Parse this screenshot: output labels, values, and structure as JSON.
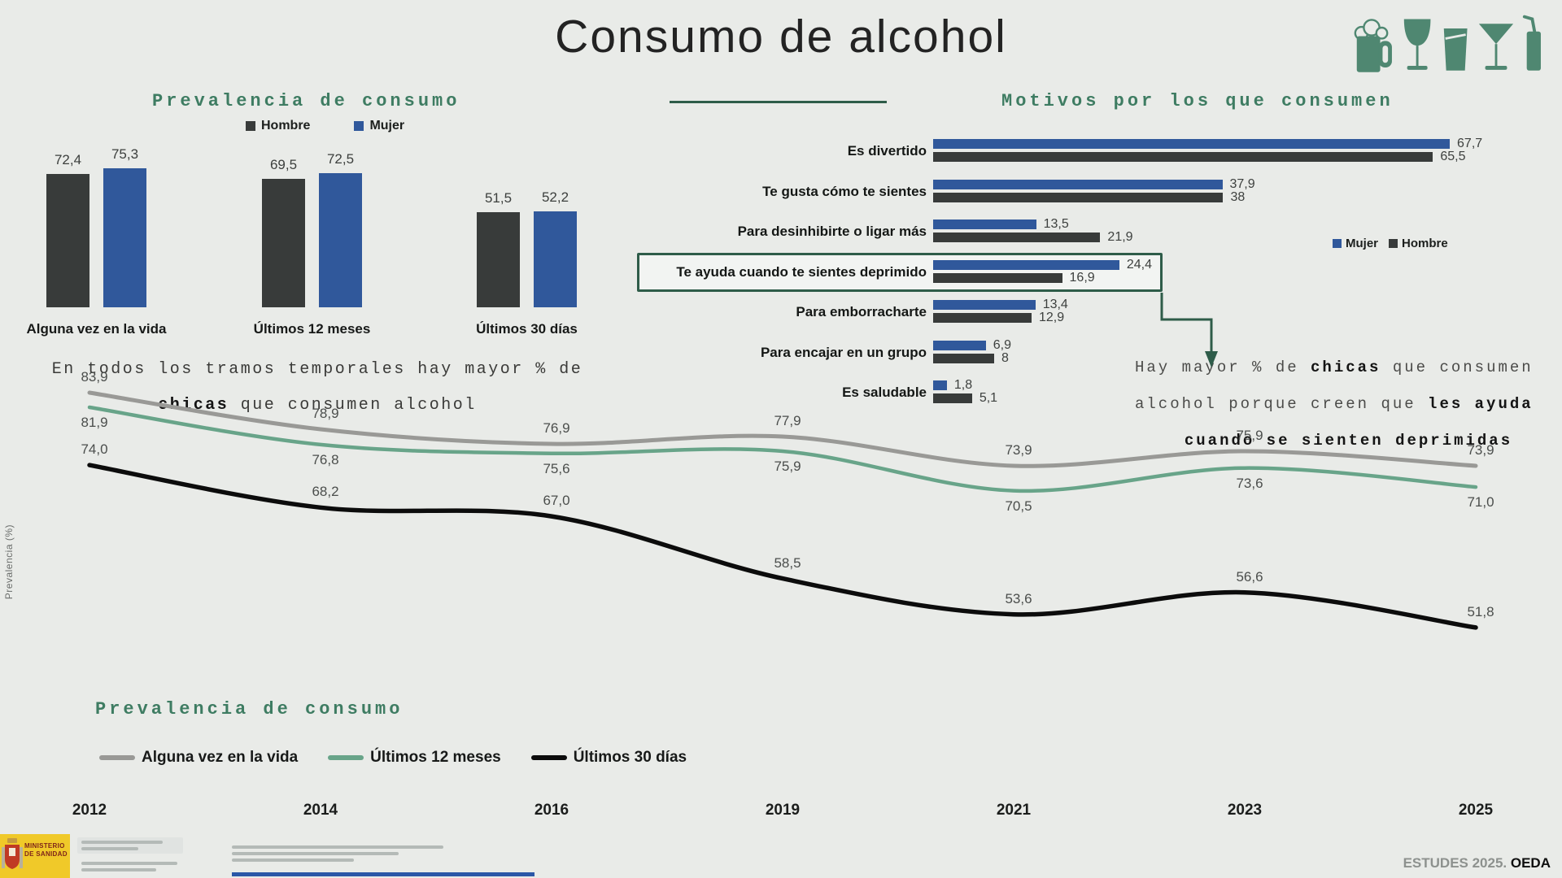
{
  "palette": {
    "bg": "#e9ebe8",
    "ink": "#222422",
    "hombre": "#383b3a",
    "mujer": "#30589b",
    "green": "#3e7c62",
    "green_dark": "#2e5c49",
    "icon": "#4f8771",
    "yellow": "#f0c929",
    "red_text": "#7e241a",
    "blue_strip": "#2b57a7"
  },
  "page": {
    "title": "Consumo de alcohol"
  },
  "icons": [
    "beer-mug",
    "wine-glass",
    "tumbler-glass",
    "martini-glass",
    "soft-drink-straw"
  ],
  "chart_data": [
    {
      "id": "prevalencia_barras",
      "type": "bar",
      "orientation": "vertical",
      "title": "Prevalencia de consumo",
      "legend_position": "top",
      "categories": [
        "Alguna vez en la vida",
        "Últimos 12 meses",
        "Últimos 30 días"
      ],
      "series": [
        {
          "name": "Hombre",
          "color": "#383b3a",
          "values": [
            72.4,
            69.5,
            51.5
          ],
          "labels": [
            "72,4",
            "69,5",
            "51,5"
          ]
        },
        {
          "name": "Mujer",
          "color": "#30589b",
          "values": [
            75.3,
            72.5,
            52.2
          ],
          "labels": [
            "75,3",
            "72,5",
            "52,2"
          ]
        }
      ],
      "note_lines": [
        [
          {
            "t": "En todos los tramos temporales hay mayor % de",
            "b": false
          }
        ],
        [
          {
            "t": "chicas",
            "b": true
          },
          {
            "t": " que consumen alcohol",
            "b": false
          }
        ]
      ]
    },
    {
      "id": "motivos_consumo",
      "type": "bar",
      "orientation": "horizontal",
      "title": "Motivos por los que consumen",
      "legend_position": "right",
      "categories": [
        "Es divertido",
        "Te gusta cómo te sientes",
        "Para desinhibirte o ligar más",
        "Te ayuda cuando te sientes deprimido",
        "Para emborracharte",
        "Para encajar en un grupo",
        "Es saludable"
      ],
      "highlight_category_index": 3,
      "series": [
        {
          "name": "Mujer",
          "color": "#30589b",
          "values": [
            67.7,
            37.9,
            13.5,
            24.4,
            13.4,
            6.9,
            1.8
          ],
          "labels": [
            "67,7",
            "37,9",
            "13,5",
            "24,4",
            "13,4",
            "6,9",
            "1,8"
          ]
        },
        {
          "name": "Hombre",
          "color": "#383b3a",
          "values": [
            65.5,
            38,
            21.9,
            16.9,
            12.9,
            8,
            5.1
          ],
          "labels": [
            "65,5",
            "38",
            "21,9",
            "16,9",
            "12,9",
            "8",
            "5,1"
          ]
        }
      ],
      "annotation_lines": [
        [
          {
            "t": "Hay mayor % de ",
            "b": false
          },
          {
            "t": "chicas",
            "b": true
          },
          {
            "t": " que consumen",
            "b": false
          }
        ],
        [
          {
            "t": "alcohol porque creen que ",
            "b": false
          },
          {
            "t": "les ayuda",
            "b": true
          }
        ],
        [
          {
            "t": "cuando se sienten deprimidas",
            "b": true
          }
        ]
      ]
    },
    {
      "id": "evolucion_prevalencia",
      "type": "line",
      "title": "Prevalencia de consumo",
      "ylabel": "Prevalencia (%)",
      "grid": false,
      "x": [
        "2012",
        "2014",
        "2016",
        "2019",
        "2021",
        "2023",
        "2025"
      ],
      "series": [
        {
          "name": "Alguna vez en la vida",
          "color": "#999996",
          "label_side": "above",
          "values": [
            83.9,
            78.9,
            76.9,
            77.9,
            73.9,
            75.9,
            73.9
          ],
          "labels": [
            "83,9",
            "78,9",
            "76,9",
            "77,9",
            "73,9",
            "75,9",
            "73,9"
          ]
        },
        {
          "name": "Últimos 12 meses",
          "color": "#68a489",
          "label_side": "below",
          "values": [
            81.9,
            76.8,
            75.6,
            75.9,
            70.5,
            73.6,
            71.0
          ],
          "labels": [
            "81,9",
            "76,8",
            "75,6",
            "75,9",
            "70,5",
            "73,6",
            "71,0"
          ]
        },
        {
          "name": "Últimos 30 días",
          "color": "#0c0c0c",
          "label_side": "above",
          "values": [
            74.0,
            68.2,
            67.0,
            58.5,
            53.6,
            56.6,
            51.8
          ],
          "labels": [
            "74,0",
            "68,2",
            "67,0",
            "58,5",
            "53,6",
            "56,6",
            "51,8"
          ]
        }
      ]
    }
  ],
  "footer": {
    "ministry1": "MINISTERIO",
    "ministry2": "DE SANIDAD",
    "source": "ESTUDES 2025.",
    "source_bold": "OEDA"
  }
}
